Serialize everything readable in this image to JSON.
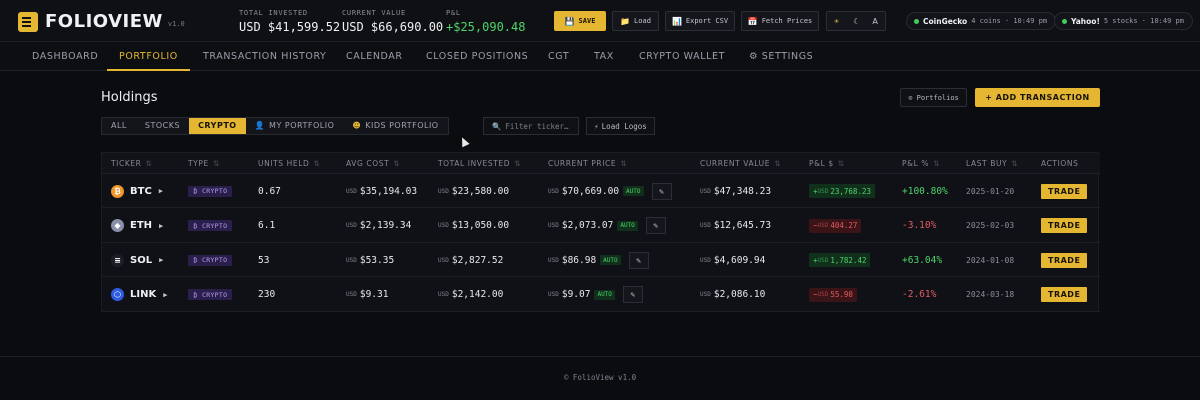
{
  "app": {
    "name": "FOLIOVIEW",
    "version": "v1.0"
  },
  "stats": {
    "total_invested": {
      "label": "TOTAL INVESTED",
      "value": "USD $41,599.52"
    },
    "current_value": {
      "label": "CURRENT VALUE",
      "value": "USD $66,690.00"
    },
    "pnl": {
      "label": "P&L",
      "value": "+$25,090.48",
      "color": "#4fd46a"
    }
  },
  "toolbar": {
    "save": {
      "icon": "save-icon",
      "label": "SAVE"
    },
    "load": {
      "icon": "folder-icon",
      "label": "Load"
    },
    "export": {
      "icon": "chart-icon",
      "label": "Export CSV"
    },
    "fetch": {
      "icon": "calendar-icon",
      "label": "Fetch Prices"
    },
    "theme": {
      "light": "☀",
      "dark": "☾",
      "auto": "A"
    }
  },
  "sources": [
    {
      "name": "CoinGecko",
      "detail": "4 coins · 10:49 pm",
      "status_color": "#3fce5a"
    },
    {
      "name": "Yahoo!",
      "detail": "5 stocks · 10:49 pm",
      "status_color": "#3fce5a"
    }
  ],
  "nav": {
    "items": [
      "DASHBOARD",
      "PORTFOLIO",
      "TRANSACTION HISTORY",
      "CALENDAR",
      "CLOSED POSITIONS",
      "CGT",
      "TAX",
      "CRYPTO WALLET",
      "⚙ SETTINGS"
    ],
    "active": "PORTFOLIO"
  },
  "holdings": {
    "title": "Holdings",
    "portfolios_button": "⊙ Portfolios",
    "add_button": "+ ADD TRANSACTION",
    "filters": [
      "ALL",
      "STOCKS",
      "CRYPTO",
      "MY PORTFOLIO",
      "KIDS PORTFOLIO"
    ],
    "active_filter": "CRYPTO",
    "search_placeholder": "Filter ticker…",
    "load_logos": "Load Logos"
  },
  "table": {
    "columns": [
      "TICKER",
      "TYPE",
      "UNITS HELD",
      "AVG COST",
      "TOTAL INVESTED",
      "CURRENT PRICE",
      "CURRENT VALUE",
      "P&L $",
      "P&L %",
      "LAST BUY",
      "ACTIONS"
    ],
    "currency": "USD",
    "auto_label": "AUTO",
    "trade_label": "TRADE",
    "rows": [
      {
        "ticker": "BTC",
        "icon": "bitcoin-icon",
        "glyph": "₿",
        "coin_color": "#f0962b",
        "type": "₿ CRYPTO",
        "units": "0.67",
        "avg_cost": "$35,194.03",
        "total_invested": "$23,580.00",
        "current_price": "$70,669.00",
        "current_value": "$47,348.23",
        "pnl_sign": "+",
        "pnl": "23,768.23",
        "pnl_pct": "+100.80%",
        "positive": true,
        "last_buy": "2025-01-20"
      },
      {
        "ticker": "ETH",
        "icon": "ethereum-icon",
        "glyph": "◆",
        "coin_color": "#8a8fa8",
        "type": "₿ CRYPTO",
        "units": "6.1",
        "avg_cost": "$2,139.34",
        "total_invested": "$13,050.00",
        "current_price": "$2,073.07",
        "current_value": "$12,645.73",
        "pnl_sign": "−",
        "pnl": "404.27",
        "pnl_pct": "-3.10%",
        "positive": false,
        "last_buy": "2025-02-03"
      },
      {
        "ticker": "SOL",
        "icon": "solana-icon",
        "glyph": "≡",
        "coin_color": "#1c1d26",
        "type": "₿ CRYPTO",
        "units": "53",
        "avg_cost": "$53.35",
        "total_invested": "$2,827.52",
        "current_price": "$86.98",
        "current_value": "$4,609.94",
        "pnl_sign": "+",
        "pnl": "1,782.42",
        "pnl_pct": "+63.04%",
        "positive": true,
        "last_buy": "2024-01-08"
      },
      {
        "ticker": "LINK",
        "icon": "chainlink-icon",
        "glyph": "⬡",
        "coin_color": "#2f5be0",
        "type": "₿ CRYPTO",
        "units": "230",
        "avg_cost": "$9.31",
        "total_invested": "$2,142.00",
        "current_price": "$9.07",
        "current_value": "$2,086.10",
        "pnl_sign": "−",
        "pnl": "55.90",
        "pnl_pct": "-2.61%",
        "positive": false,
        "last_buy": "2024-03-18"
      }
    ]
  },
  "footer": "© FolioView v1.0",
  "colors": {
    "accent": "#e5b632",
    "positive": "#4fd46a",
    "negative": "#e35b63",
    "background": "#0b0c10"
  }
}
